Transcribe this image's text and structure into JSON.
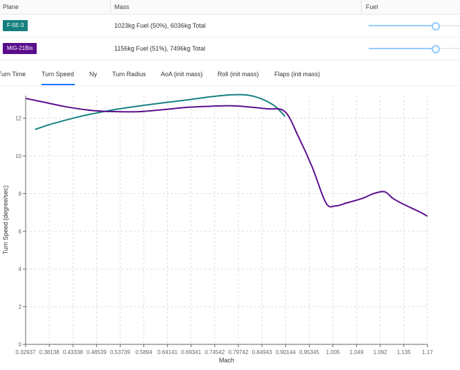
{
  "table": {
    "headers": [
      "Plane",
      "Mass",
      "Fuel"
    ],
    "rows": [
      {
        "plane": "F-5E-3",
        "color": "#168080",
        "mass": "1023kg Fuel (50%), 6036kg Total",
        "fuel_fraction": 0.73
      },
      {
        "plane": "MiG-21Bis",
        "color": "#5a0e8c",
        "mass": "1156kg Fuel (51%), 7496kg Total",
        "fuel_fraction": 0.73
      }
    ]
  },
  "tabs": [
    {
      "label": "Turn Time",
      "active": false
    },
    {
      "label": "Turn Speed",
      "active": true
    },
    {
      "label": "Ny",
      "active": false
    },
    {
      "label": "Turn Radius",
      "active": false
    },
    {
      "label": "AoA (init mass)",
      "active": false
    },
    {
      "label": "Roll (init mass)",
      "active": false
    },
    {
      "label": "Flaps (init mass)",
      "active": false
    }
  ],
  "chart_data": {
    "type": "line",
    "xlabel": "Mach",
    "ylabel": "Turn Speed (degree/sec)",
    "x_ticks": [
      "0.32937",
      "0.38138",
      "0.43338",
      "0.48539",
      "0.53739",
      "0.5894",
      "0.64141",
      "0.69341",
      "0.74542",
      "0.79742",
      "0.84943",
      "0.90144",
      "0.95345",
      "1.005",
      "1.049",
      "1.092",
      "1.135",
      "1.17"
    ],
    "y_ticks": [
      "0",
      "2",
      "4",
      "6",
      "8",
      "10",
      "12"
    ],
    "ylim": [
      0,
      13.2
    ],
    "grid": true,
    "series": [
      {
        "color": "#168080",
        "x": [
          0.35,
          0.38,
          0.41,
          0.45,
          0.49,
          0.53,
          0.57,
          0.61,
          0.65,
          0.69,
          0.73,
          0.76,
          0.78,
          0.8,
          0.82,
          0.84,
          0.86,
          0.88,
          0.9
        ],
        "y": [
          11.4,
          11.65,
          11.85,
          12.1,
          12.3,
          12.48,
          12.62,
          12.75,
          12.87,
          12.99,
          13.12,
          13.2,
          13.24,
          13.25,
          13.22,
          13.1,
          12.9,
          12.6,
          12.1
        ]
      },
      {
        "color": "#5a0e8c",
        "x": [
          0.33,
          0.37,
          0.42,
          0.48,
          0.53,
          0.58,
          0.63,
          0.68,
          0.73,
          0.78,
          0.82,
          0.86,
          0.9,
          0.93,
          0.96,
          0.99,
          1.01,
          1.03,
          1.06,
          1.08,
          1.1,
          1.115,
          1.13,
          1.16,
          1.17
        ],
        "y": [
          13.05,
          12.85,
          12.6,
          12.4,
          12.35,
          12.35,
          12.45,
          12.57,
          12.63,
          12.66,
          12.6,
          12.5,
          12.35,
          11.0,
          9.4,
          7.5,
          7.35,
          7.5,
          7.75,
          8.0,
          8.1,
          7.75,
          7.5,
          7.0,
          6.8
        ]
      }
    ]
  }
}
